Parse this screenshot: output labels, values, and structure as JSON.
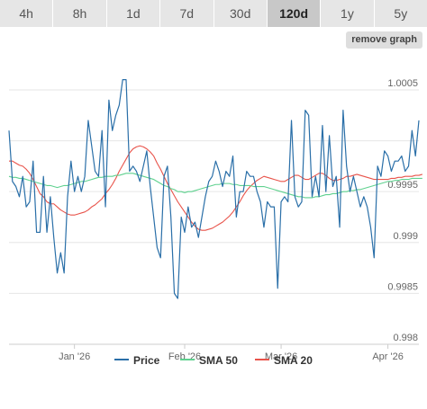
{
  "range_buttons": [
    {
      "label": "4h",
      "active": false
    },
    {
      "label": "8h",
      "active": false
    },
    {
      "label": "1d",
      "active": false
    },
    {
      "label": "7d",
      "active": false
    },
    {
      "label": "30d",
      "active": false
    },
    {
      "label": "120d",
      "active": true
    },
    {
      "label": "1y",
      "active": false
    },
    {
      "label": "5y",
      "active": false
    }
  ],
  "remove_graph_label": "remove graph",
  "colors": {
    "price": "#2a6fa8",
    "sma50": "#5fd18f",
    "sma20": "#e8534a",
    "grid": "#e6e6e6",
    "axis_text": "#666666",
    "range_bar_bg": "#e6e6e6",
    "range_active_bg": "#c8c8c8"
  },
  "chart_data": {
    "type": "line",
    "x_tick_labels": [
      "Jan '26",
      "Feb '26",
      "Mar '26",
      "Apr '26"
    ],
    "x_tick_index": [
      19,
      51,
      79,
      110
    ],
    "y_ticks": [
      0.998,
      0.9985,
      0.999,
      0.9995,
      1.0005
    ],
    "ylim": [
      0.998,
      1.0008
    ],
    "grid": true,
    "legend_position": "bottom",
    "series": [
      {
        "name": "Price",
        "color_key": "price",
        "values": [
          1.0001,
          0.9996,
          0.99955,
          0.99945,
          0.99965,
          0.99935,
          0.9994,
          0.9998,
          0.9991,
          0.9991,
          0.99965,
          0.9991,
          0.99945,
          0.99905,
          0.9987,
          0.9989,
          0.9987,
          0.99945,
          0.9998,
          0.9995,
          0.99965,
          0.9995,
          0.99965,
          1.0002,
          0.99995,
          0.9997,
          0.99965,
          1.0001,
          0.99935,
          1.0004,
          1.0001,
          1.00025,
          1.00035,
          1.0006,
          1.0006,
          0.9997,
          0.99975,
          0.9997,
          0.9996,
          0.99975,
          0.9999,
          0.99955,
          0.99925,
          0.99895,
          0.99885,
          0.99965,
          0.99975,
          0.99925,
          0.9985,
          0.99845,
          0.99925,
          0.9991,
          0.99935,
          0.99915,
          0.9992,
          0.99905,
          0.99925,
          0.99945,
          0.9996,
          0.99965,
          0.9998,
          0.9997,
          0.99955,
          0.9997,
          0.99965,
          0.99985,
          0.99925,
          0.9995,
          0.9995,
          0.9997,
          0.99965,
          0.99965,
          0.9995,
          0.9994,
          0.99915,
          0.9994,
          0.99935,
          0.99935,
          0.99855,
          0.9994,
          0.99945,
          0.9994,
          1.0002,
          0.99945,
          0.99935,
          0.9994,
          1.0003,
          1.00025,
          0.99945,
          0.99965,
          0.99945,
          1.00015,
          0.9995,
          1.00005,
          0.99955,
          0.99965,
          0.99915,
          1.0003,
          0.99975,
          0.9995,
          0.99965,
          0.9995,
          0.99935,
          0.99945,
          0.99935,
          0.99915,
          0.99885,
          0.99975,
          0.99965,
          0.9999,
          0.99985,
          0.9997,
          0.9998,
          0.9998,
          0.99985,
          0.9997,
          0.99975,
          1.0001,
          0.99985,
          1.0002
        ]
      },
      {
        "name": "SMA 50",
        "color_key": "sma50",
        "values": [
          0.99965,
          0.99964,
          0.99964,
          0.99963,
          0.99963,
          0.99962,
          0.99961,
          0.9996,
          0.99959,
          0.99958,
          0.99957,
          0.99956,
          0.99956,
          0.99955,
          0.99954,
          0.99955,
          0.99956,
          0.99956,
          0.99957,
          0.99958,
          0.99959,
          0.9996,
          0.9996,
          0.99961,
          0.99962,
          0.99963,
          0.99964,
          0.99964,
          0.99965,
          0.99965,
          0.99965,
          0.99966,
          0.99966,
          0.99967,
          0.99968,
          0.99968,
          0.99968,
          0.99967,
          0.99966,
          0.99965,
          0.99964,
          0.99963,
          0.99962,
          0.9996,
          0.99958,
          0.99956,
          0.99955,
          0.99953,
          0.99952,
          0.9995,
          0.9995,
          0.99949,
          0.9995,
          0.9995,
          0.99951,
          0.99952,
          0.99953,
          0.99954,
          0.99955,
          0.99956,
          0.99957,
          0.99957,
          0.99958,
          0.99958,
          0.99958,
          0.99957,
          0.99957,
          0.99956,
          0.99956,
          0.99956,
          0.99956,
          0.99955,
          0.99955,
          0.99955,
          0.99955,
          0.99954,
          0.99953,
          0.99952,
          0.99951,
          0.9995,
          0.99949,
          0.99948,
          0.99947,
          0.99946,
          0.99945,
          0.99945,
          0.99944,
          0.99944,
          0.99944,
          0.99945,
          0.99945,
          0.99946,
          0.99947,
          0.99947,
          0.99948,
          0.99948,
          0.99949,
          0.9995,
          0.9995,
          0.99951,
          0.99951,
          0.99952,
          0.99952,
          0.99953,
          0.99954,
          0.99955,
          0.99956,
          0.99957,
          0.99958,
          0.99959,
          0.9996,
          0.9996,
          0.99961,
          0.99961,
          0.99962,
          0.99962,
          0.99962,
          0.99963,
          0.99963,
          0.99963,
          0.99963
        ]
      },
      {
        "name": "SMA 20",
        "color_key": "sma20",
        "values": [
          0.9998,
          0.9998,
          0.99978,
          0.99976,
          0.99975,
          0.99972,
          0.99968,
          0.99962,
          0.99955,
          0.99948,
          0.99945,
          0.9994,
          0.99938,
          0.99938,
          0.99935,
          0.99932,
          0.9993,
          0.99928,
          0.99927,
          0.99927,
          0.99928,
          0.99929,
          0.9993,
          0.99932,
          0.99935,
          0.99937,
          0.9994,
          0.99943,
          0.99948,
          0.99952,
          0.99957,
          0.99963,
          0.9997,
          0.99976,
          0.99982,
          0.99988,
          0.99992,
          0.99994,
          0.99995,
          0.99994,
          0.99992,
          0.99989,
          0.99985,
          0.99978,
          0.99972,
          0.99965,
          0.99958,
          0.99952,
          0.99946,
          0.9994,
          0.99935,
          0.9993,
          0.99925,
          0.9992,
          0.99916,
          0.99913,
          0.99912,
          0.99912,
          0.99913,
          0.99914,
          0.99916,
          0.99918,
          0.9992,
          0.99923,
          0.99926,
          0.9993,
          0.99935,
          0.9994,
          0.99946,
          0.99951,
          0.99955,
          0.99958,
          0.99961,
          0.99963,
          0.99965,
          0.99964,
          0.99963,
          0.99962,
          0.99961,
          0.9996,
          0.9996,
          0.99962,
          0.99964,
          0.99966,
          0.99966,
          0.99964,
          0.99962,
          0.99962,
          0.99964,
          0.99966,
          0.99968,
          0.99968,
          0.99966,
          0.99963,
          0.99961,
          0.99961,
          0.99962,
          0.99963,
          0.99965,
          0.99965,
          0.99966,
          0.99967,
          0.99966,
          0.99965,
          0.99964,
          0.99963,
          0.99962,
          0.99962,
          0.99962,
          0.99962,
          0.99962,
          0.99963,
          0.99963,
          0.99964,
          0.99964,
          0.99965,
          0.99965,
          0.99965,
          0.99966,
          0.99966,
          0.99967
        ]
      }
    ]
  }
}
